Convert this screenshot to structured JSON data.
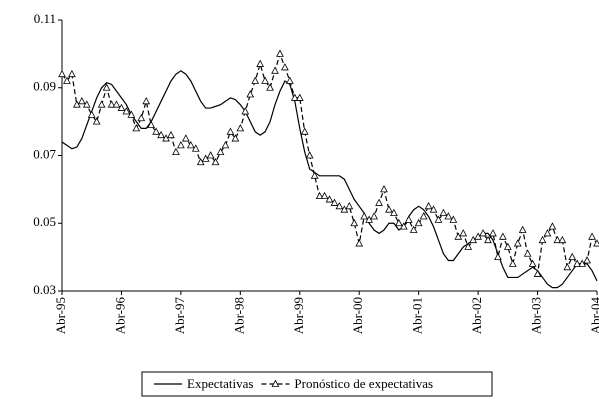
{
  "chart_data": {
    "type": "line",
    "categories": [
      "Abr-95",
      null,
      null,
      null,
      null,
      null,
      null,
      null,
      null,
      null,
      null,
      null,
      "Abr-96",
      null,
      null,
      null,
      null,
      null,
      null,
      null,
      null,
      null,
      null,
      null,
      "Abr-97",
      null,
      null,
      null,
      null,
      null,
      null,
      null,
      null,
      null,
      null,
      null,
      "Abr-98",
      null,
      null,
      null,
      null,
      null,
      null,
      null,
      null,
      null,
      null,
      null,
      "Abr-99",
      null,
      null,
      null,
      null,
      null,
      null,
      null,
      null,
      null,
      null,
      null,
      "Abr-00",
      null,
      null,
      null,
      null,
      null,
      null,
      null,
      null,
      null,
      null,
      null,
      "Abr-01",
      null,
      null,
      null,
      null,
      null,
      null,
      null,
      null,
      null,
      null,
      null,
      "Abr-02",
      null,
      null,
      null,
      null,
      null,
      null,
      null,
      null,
      null,
      null,
      null,
      "Abr-03",
      null,
      null,
      null,
      null,
      null,
      null,
      null,
      null,
      null,
      null,
      null,
      "Abr-04"
    ],
    "series": [
      {
        "name": "Expectativas",
        "color": "#000000",
        "dash": false,
        "marker": false,
        "values": [
          0.074,
          0.073,
          0.072,
          0.0725,
          0.075,
          0.079,
          0.083,
          0.087,
          0.09,
          0.0915,
          0.091,
          0.089,
          0.087,
          0.085,
          0.082,
          0.08,
          0.078,
          0.078,
          0.08,
          0.083,
          0.086,
          0.089,
          0.092,
          0.094,
          0.095,
          0.094,
          0.092,
          0.089,
          0.086,
          0.084,
          0.084,
          0.0845,
          0.085,
          0.086,
          0.087,
          0.0865,
          0.085,
          0.083,
          0.08,
          0.077,
          0.076,
          0.077,
          0.08,
          0.085,
          0.089,
          0.092,
          0.091,
          0.086,
          0.078,
          0.071,
          0.066,
          0.065,
          0.064,
          0.064,
          0.064,
          0.064,
          0.064,
          0.063,
          0.06,
          0.057,
          0.055,
          0.053,
          0.05,
          0.048,
          0.047,
          0.048,
          0.05,
          0.05,
          0.048,
          0.049,
          0.052,
          0.054,
          0.055,
          0.054,
          0.052,
          0.049,
          0.045,
          0.041,
          0.039,
          0.039,
          0.041,
          0.043,
          0.044,
          0.045,
          0.046,
          0.047,
          0.047,
          0.045,
          0.041,
          0.037,
          0.034,
          0.034,
          0.034,
          0.035,
          0.036,
          0.037,
          0.036,
          0.034,
          0.032,
          0.031,
          0.031,
          0.032,
          0.034,
          0.036,
          0.038,
          0.038,
          0.038,
          0.036,
          0.033
        ]
      },
      {
        "name": "Pronóstico de expectativas",
        "color": "#000000",
        "dash": true,
        "marker": true,
        "values": [
          0.094,
          0.092,
          0.094,
          0.085,
          0.086,
          0.085,
          0.082,
          0.08,
          0.085,
          0.09,
          0.085,
          0.085,
          0.084,
          0.083,
          0.082,
          0.078,
          0.081,
          0.086,
          0.079,
          0.077,
          0.076,
          0.075,
          0.076,
          0.071,
          0.073,
          0.075,
          0.073,
          0.072,
          0.068,
          0.069,
          0.07,
          0.068,
          0.071,
          0.073,
          0.077,
          0.075,
          0.078,
          0.083,
          0.088,
          0.092,
          0.097,
          0.092,
          0.09,
          0.095,
          0.1,
          0.096,
          0.092,
          0.087,
          0.087,
          0.077,
          0.07,
          0.064,
          0.058,
          0.058,
          0.057,
          0.056,
          0.055,
          0.054,
          0.055,
          0.05,
          0.044,
          0.052,
          0.051,
          0.052,
          0.056,
          0.06,
          0.054,
          0.053,
          0.05,
          0.049,
          0.051,
          0.048,
          0.05,
          0.052,
          0.055,
          0.054,
          0.051,
          0.053,
          0.052,
          0.051,
          0.046,
          0.047,
          0.043,
          0.045,
          0.046,
          0.047,
          0.045,
          0.047,
          0.04,
          0.046,
          0.043,
          0.038,
          0.044,
          0.048,
          0.041,
          0.038,
          0.035,
          0.045,
          0.047,
          0.049,
          0.045,
          0.045,
          0.037,
          0.04,
          0.038,
          0.038,
          0.039,
          0.046,
          0.044
        ]
      }
    ],
    "ylim": [
      0.03,
      0.11
    ],
    "yticks": [
      0.03,
      0.05,
      0.07,
      0.09,
      0.11
    ],
    "grid": false,
    "legend": "bottom"
  }
}
